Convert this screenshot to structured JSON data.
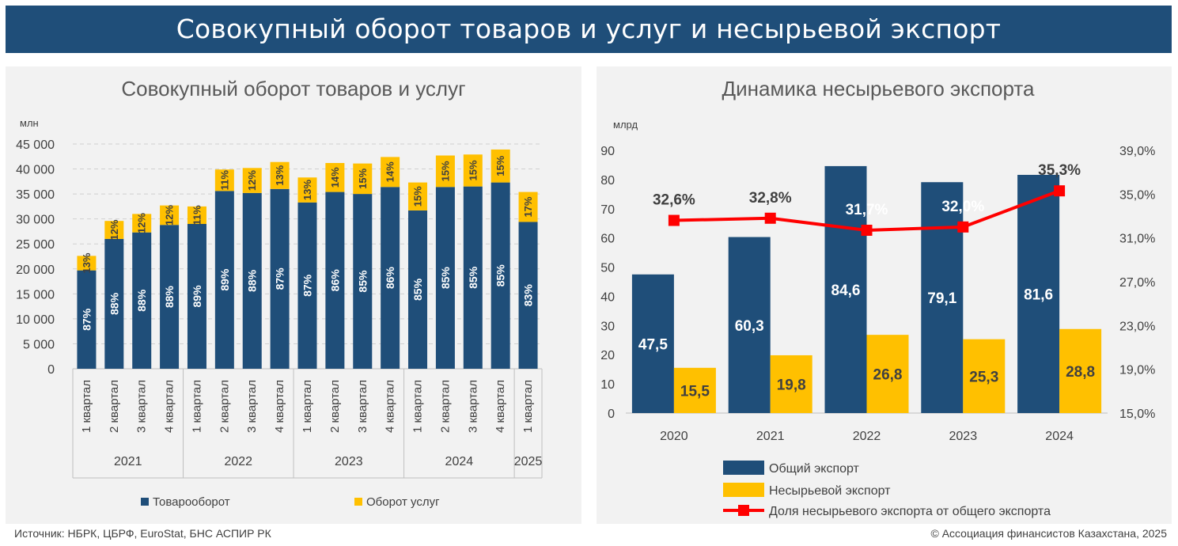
{
  "banner_title": "Совокупный оборот товаров и услуг и несырьевой экспорт",
  "source": "Источник: НБРК, ЦБРФ, EuroStat, БНС АСПИР РК",
  "copyright": "© Ассоциация финансистов Казахстана, 2025",
  "colors": {
    "navy": "#1f4e79",
    "gold": "#ffc000",
    "red": "#ff0000",
    "banner": "#1f4e79",
    "panel": "#f2f2f2"
  },
  "chart_data": [
    {
      "type": "bar",
      "stacked": true,
      "title": "Совокупный оборот товаров и услуг",
      "ylabel": "млн",
      "ylim": [
        0,
        45000
      ],
      "yticks": [
        "0",
        "5 000",
        "10 000",
        "15 000",
        "20 000",
        "25 000",
        "30 000",
        "35 000",
        "40 000",
        "45 000"
      ],
      "grid": true,
      "legend_position": "bottom",
      "categories": [
        "1 квартал",
        "2 квартал",
        "3 квартал",
        "4 квартал",
        "1 квартал",
        "2 квартал",
        "3 квартал",
        "4 квартал",
        "1 квартал",
        "2 квартал",
        "3 квартал",
        "4 квартал",
        "1 квартал",
        "2 квартал",
        "3 квартал",
        "4 квартал",
        "1 квартал"
      ],
      "groups": [
        {
          "label": "2021",
          "count": 4
        },
        {
          "label": "2022",
          "count": 4
        },
        {
          "label": "2023",
          "count": 4
        },
        {
          "label": "2024",
          "count": 4
        },
        {
          "label": "2025",
          "count": 1
        }
      ],
      "series": [
        {
          "name": "Товарооборот",
          "color": "#1f4e79",
          "values": [
            19700,
            26000,
            27300,
            28800,
            29000,
            35600,
            35200,
            36000,
            33300,
            35400,
            35000,
            36400,
            31700,
            36400,
            36500,
            37300,
            29400
          ],
          "labels": [
            "87%",
            "88%",
            "88%",
            "88%",
            "89%",
            "89%",
            "88%",
            "87%",
            "87%",
            "86%",
            "85%",
            "86%",
            "85%",
            "85%",
            "85%",
            "85%",
            "83%"
          ]
        },
        {
          "name": "Оборот услуг",
          "color": "#ffc000",
          "values": [
            2900,
            3600,
            3700,
            3900,
            3500,
            4300,
            5000,
            5400,
            5000,
            5800,
            6100,
            6000,
            5600,
            6300,
            6400,
            6600,
            6000
          ],
          "labels": [
            "13%",
            "12%",
            "12%",
            "12%",
            "11%",
            "11%",
            "12%",
            "13%",
            "13%",
            "14%",
            "15%",
            "14%",
            "15%",
            "15%",
            "15%",
            "15%",
            "17%"
          ]
        }
      ]
    },
    {
      "type": "bar",
      "title": "Динамика несырьевого экспорта",
      "ylabel": "млрд",
      "ylim": [
        0,
        90
      ],
      "yticks": [
        "0",
        "10",
        "20",
        "30",
        "40",
        "50",
        "60",
        "70",
        "80",
        "90"
      ],
      "y2lim": [
        15,
        39
      ],
      "y2ticks": [
        "15,0%",
        "19,0%",
        "23,0%",
        "27,0%",
        "31,0%",
        "35,0%",
        "39,0%"
      ],
      "grid": false,
      "legend_position": "bottom",
      "categories": [
        "2020",
        "2021",
        "2022",
        "2023",
        "2024"
      ],
      "series": [
        {
          "name": "Общий экспорт",
          "kind": "bar",
          "color": "#1f4e79",
          "values": [
            47.5,
            60.3,
            84.6,
            79.1,
            81.6
          ],
          "labels": [
            "47,5",
            "60,3",
            "84,6",
            "79,1",
            "81,6"
          ]
        },
        {
          "name": "Несырьевой экспорт",
          "kind": "bar",
          "color": "#ffc000",
          "values": [
            15.5,
            19.8,
            26.8,
            25.3,
            28.8
          ],
          "labels": [
            "15,5",
            "19,8",
            "26,8",
            "25,3",
            "28,8"
          ]
        },
        {
          "name": "Доля несырьевого экспорта от общего экспорта",
          "kind": "line",
          "axis": "right",
          "color": "#ff0000",
          "values": [
            32.6,
            32.8,
            31.7,
            32.0,
            35.3
          ],
          "labels": [
            "32,6%",
            "32,8%",
            "31,7%",
            "32,0%",
            "35,3%"
          ]
        }
      ]
    }
  ]
}
